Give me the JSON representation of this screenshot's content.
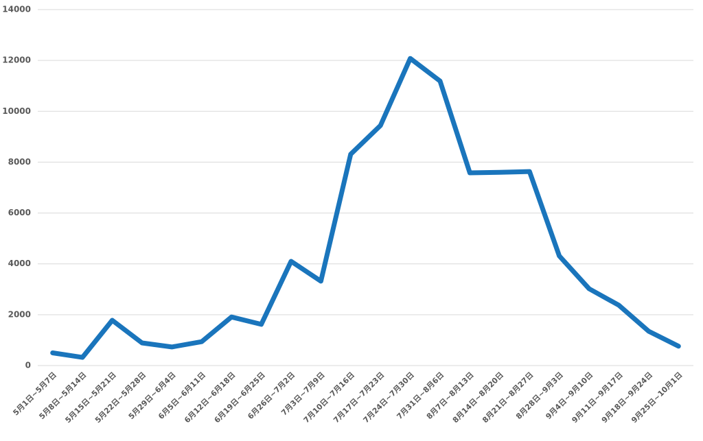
{
  "chart_data": {
    "type": "line",
    "categories": [
      "5月1日~5月7日",
      "5月8日~5月14日",
      "5月15日~5月21日",
      "5月22日~5月28日",
      "5月29日~6月4日",
      "6月5日~6月11日",
      "6月12日~6月18日",
      "6月19日~6月25日",
      "6月26日~7月2日",
      "7月3日~7月9日",
      "7月10日~7月16日",
      "7月17日~7月23日",
      "7月24日~7月30日",
      "7月31日~8月6日",
      "8月7日~8月13日",
      "8月14日~8月20日",
      "8月21日~8月27日",
      "8月28日~9月3日",
      "9月4日~9月10日",
      "9月11日~9月17日",
      "9月18日~9月24日",
      "9月25日~10月1日"
    ],
    "values": [
      500,
      320,
      1780,
      890,
      730,
      940,
      1910,
      1620,
      4100,
      3320,
      8310,
      9440,
      12080,
      11190,
      7580,
      7600,
      7630,
      4310,
      3020,
      2370,
      1350,
      760
    ],
    "color": "#1a75bc",
    "ylim": [
      0,
      14000
    ],
    "yticks": [
      0,
      2000,
      4000,
      6000,
      8000,
      10000,
      12000,
      14000
    ],
    "grid": true
  }
}
